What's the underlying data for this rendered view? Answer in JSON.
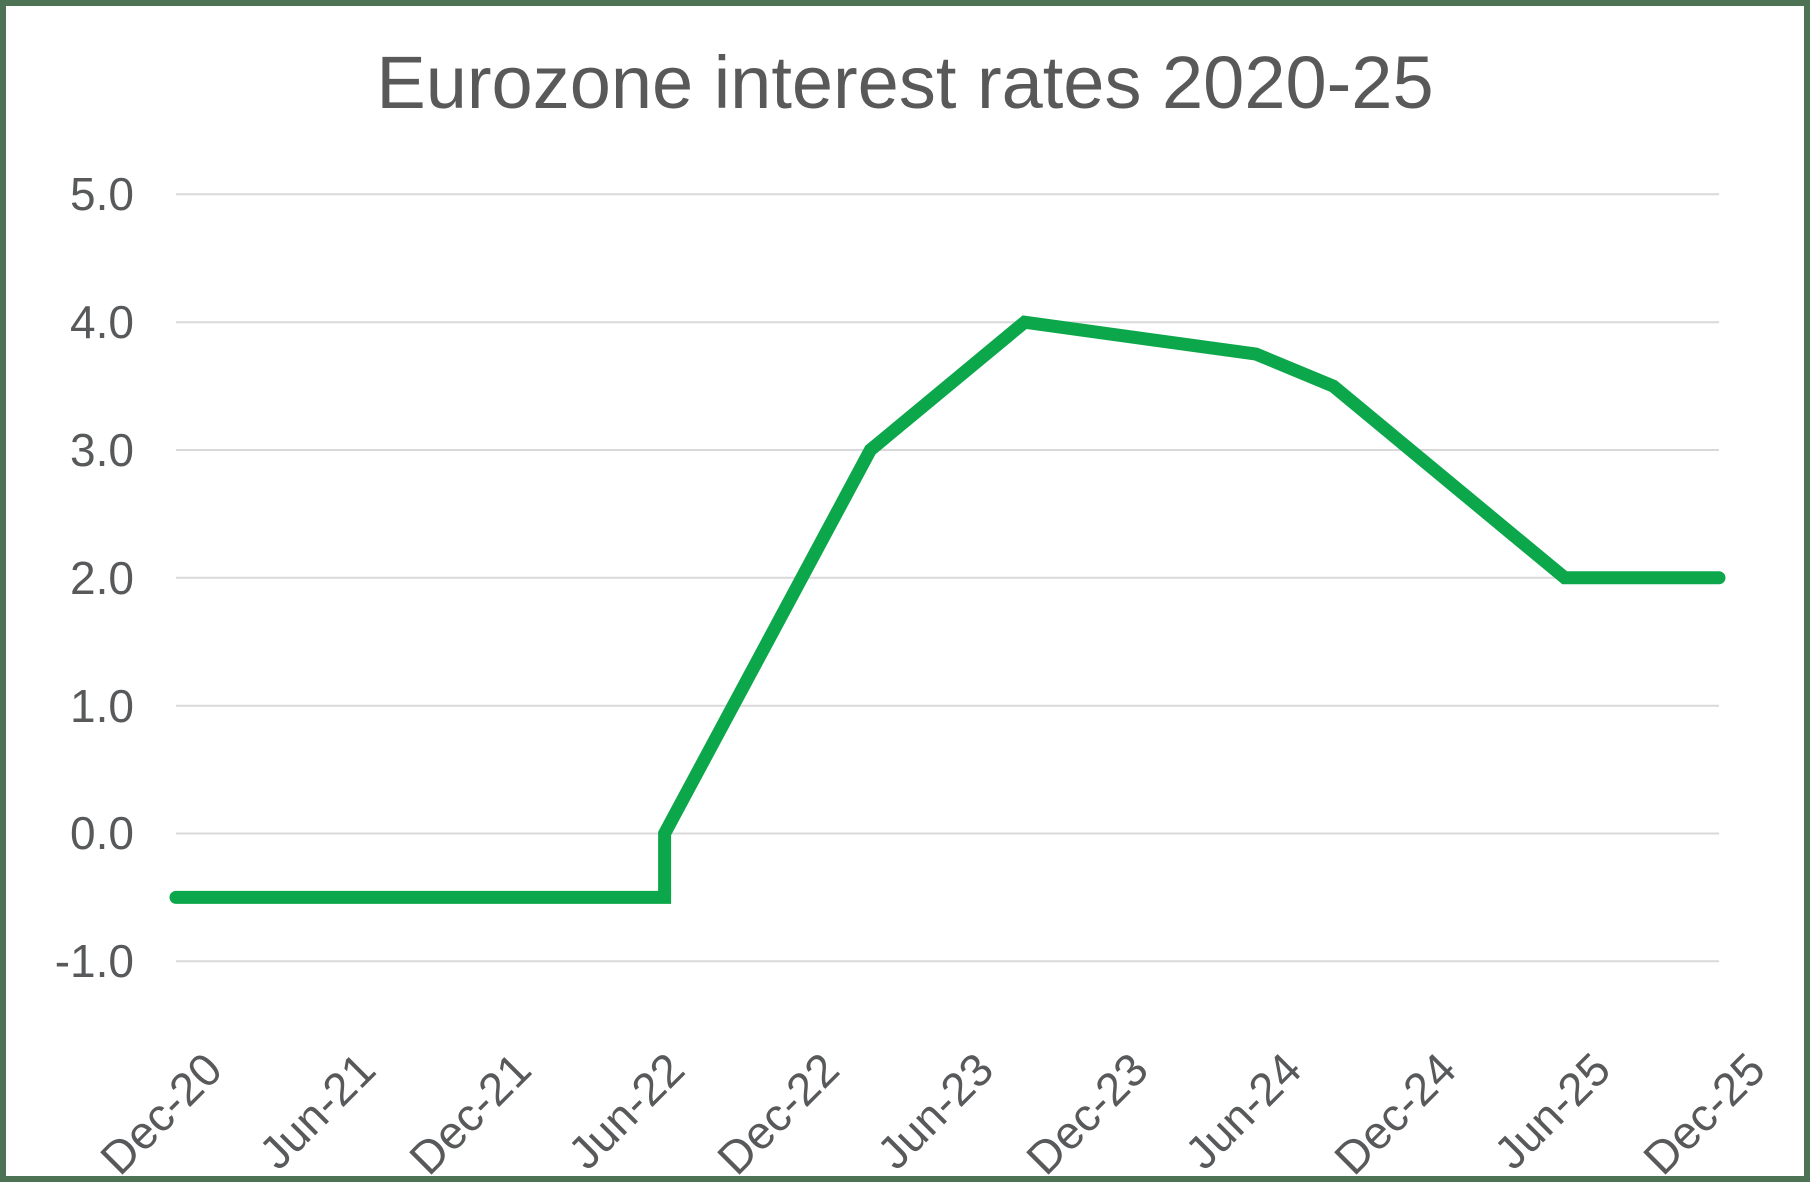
{
  "window": {
    "frame_color": "#4E7354",
    "background": "#FFFFFF"
  },
  "chart_data": {
    "type": "line",
    "title": "Eurozone interest rates 2020-25",
    "xlabel": "",
    "ylabel": "",
    "grid": true,
    "legend": false,
    "ylim": [
      -1.0,
      5.0
    ],
    "y_tick_labels": [
      "5.0",
      "4.0",
      "3.0",
      "2.0",
      "1.0",
      "0.0",
      "-1.0"
    ],
    "y_tick_values": [
      5,
      4,
      3,
      2,
      1,
      0,
      -1
    ],
    "x_tick_labels": [
      "Dec-20",
      "Jun-21",
      "Dec-21",
      "Jun-22",
      "Dec-22",
      "Jun-23",
      "Dec-23",
      "Jun-24",
      "Dec-24",
      "Jun-25",
      "Dec-25"
    ],
    "x_tick_months": [
      0,
      6,
      12,
      18,
      24,
      30,
      36,
      42,
      48,
      54,
      60
    ],
    "colors": {
      "line": "#0CA74B",
      "gridline": "#D9D9D9",
      "text": "#58595B",
      "title_text": "#595959"
    },
    "line_width": 13,
    "series": [
      {
        "points": [
          {
            "date": "Dec-20",
            "month": 0,
            "value": -0.5
          },
          {
            "date": "Jul-22",
            "month": 19,
            "value": -0.5
          },
          {
            "date": "Jul-22",
            "month": 19,
            "value": 0.0
          },
          {
            "date": "Nov-22",
            "month": 23,
            "value": 1.5
          },
          {
            "date": "Mar-23",
            "month": 27,
            "value": 3.0
          },
          {
            "date": "Sep-23",
            "month": 33,
            "value": 4.0
          },
          {
            "date": "Jun-24",
            "month": 42,
            "value": 3.75
          },
          {
            "date": "Sep-24",
            "month": 45,
            "value": 3.5
          },
          {
            "date": "Dec-24",
            "month": 48,
            "value": 3.0
          },
          {
            "date": "Jun-25",
            "month": 54,
            "value": 2.0
          },
          {
            "date": "Dec-25",
            "month": 60,
            "value": 2.0
          }
        ]
      }
    ]
  }
}
